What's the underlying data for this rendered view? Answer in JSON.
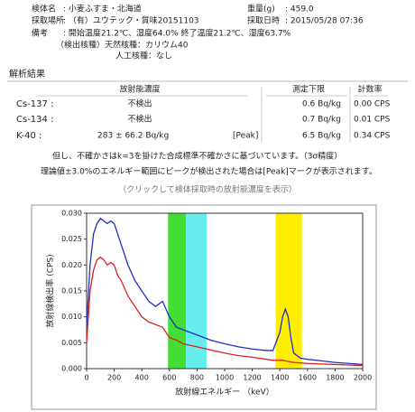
{
  "header": {
    "rows": [
      [
        {
          "label": "検体名",
          "value": ": 小麦ふすま・北海道"
        },
        {
          "label": "重量(g)",
          "value": ": 459.0"
        }
      ],
      [
        {
          "label": "採取場所",
          "value": ": （有）ユウテック・質味20151103"
        },
        {
          "label": "採取日時",
          "value": ": 2015/05/28 07:36"
        }
      ],
      [
        {
          "label": "備考",
          "value": ": 開始温度21.2℃、湿度64.0% 終了温度21.2℃、湿度63.7%"
        }
      ]
    ],
    "notes": [
      "（検出核種）天然核種：カリウム40",
      "人工核種：なし"
    ]
  },
  "results": {
    "title": "解析結果",
    "headers": [
      "放射能濃度",
      "測定下限",
      "計数率"
    ],
    "rows": [
      {
        "nuclide": "Cs-137 :",
        "value": "不検出",
        "limit": "0.6 Bq/kg",
        "rate": "0.00 CPS"
      },
      {
        "nuclide": "Cs-134 :",
        "value": "不検出",
        "limit": "0.7 Bq/kg",
        "rate": "0.01 CPS"
      },
      {
        "nuclide": "K-40 :",
        "value": "283 ± 66.2 Bq/kg",
        "mark": "[Peak]",
        "limit": "6.5 Bq/kg",
        "rate": "0.34 CPS"
      }
    ],
    "notes": [
      "但し、不確かさはk=3を掛けた合成標準不確かさに基づいています。（3σ精度）",
      "理論値±3.0%のエネルギー範囲にピークが検出された場合は[Peak]マークが表示されます。"
    ],
    "link": "（クリックして検体採取時の放射能濃度を表示）"
  },
  "chart_data": {
    "type": "line",
    "xlabel": "放射線エネルギー （keV）",
    "ylabel": "放射線検出率 (CPS)",
    "x": [
      0,
      25,
      50,
      75,
      100,
      125,
      150,
      175,
      200,
      225,
      250,
      300,
      350,
      400,
      450,
      500,
      550,
      600,
      650,
      700,
      750,
      800,
      900,
      1000,
      1100,
      1200,
      1300,
      1350,
      1400,
      1420,
      1440,
      1460,
      1480,
      1500,
      1550,
      1600,
      1700,
      1800,
      1900,
      2000
    ],
    "series": [
      {
        "color": "#1f2fc0",
        "values": [
          0.008,
          0.02,
          0.026,
          0.028,
          0.029,
          0.0285,
          0.028,
          0.0285,
          0.028,
          0.026,
          0.024,
          0.02,
          0.017,
          0.015,
          0.013,
          0.012,
          0.013,
          0.01,
          0.008,
          0.0075,
          0.007,
          0.0065,
          0.0055,
          0.0048,
          0.0042,
          0.0038,
          0.0035,
          0.0035,
          0.007,
          0.01,
          0.0115,
          0.01,
          0.006,
          0.003,
          0.002,
          0.0018,
          0.0015,
          0.0012,
          0.001,
          0.0008
        ]
      },
      {
        "color": "#e02020",
        "values": [
          0.005,
          0.015,
          0.019,
          0.021,
          0.0215,
          0.021,
          0.02,
          0.0205,
          0.02,
          0.018,
          0.017,
          0.014,
          0.012,
          0.01,
          0.009,
          0.0085,
          0.008,
          0.006,
          0.0055,
          0.0048,
          0.0045,
          0.0042,
          0.0036,
          0.003,
          0.0025,
          0.0022,
          0.0018,
          0.0016,
          0.0016,
          0.0016,
          0.0015,
          0.0014,
          0.0013,
          0.0012,
          0.0011,
          0.001,
          0.0009,
          0.0008,
          0.0007,
          0.0006
        ]
      }
    ],
    "bands": [
      {
        "x": [
          590,
          720
        ],
        "color": "#44dd33"
      },
      {
        "x": [
          720,
          870
        ],
        "color": "#66eeee"
      },
      {
        "x": [
          1370,
          1560
        ],
        "color": "#ffee00"
      }
    ],
    "xlim": [
      0,
      2000
    ],
    "xticks": [
      0,
      200,
      400,
      600,
      800,
      1000,
      1200,
      1400,
      1600,
      1800,
      2000
    ],
    "ylim": [
      0,
      0.03
    ],
    "yticks": [
      {
        "value": 0,
        "label": "0.000"
      },
      {
        "value": 0.005,
        "label": "0.005"
      },
      {
        "value": 0.01,
        "label": "0.010"
      },
      {
        "value": 0.015,
        "label": "0.015"
      },
      {
        "value": 0.02,
        "label": "0.020"
      },
      {
        "value": 0.025,
        "label": "0.025"
      },
      {
        "value": 0.03,
        "label": "0.030"
      }
    ],
    "grid": false
  }
}
